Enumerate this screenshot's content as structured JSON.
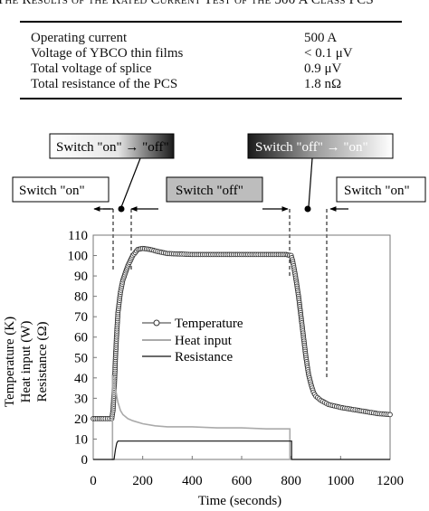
{
  "caption": "The Results of the Rated Current Test of the 500 A Class PCS",
  "spec_table": [
    {
      "label": "Operating current",
      "value": "500 A"
    },
    {
      "label": "Voltage of YBCO thin films",
      "value": "< 0.1 μV"
    },
    {
      "label": "Total voltage of splice",
      "value": "0.9 μV"
    },
    {
      "label": "Total resistance of the PCS",
      "value": "1.8 nΩ"
    }
  ],
  "annotations": {
    "switch_on_left": "Switch \"on\"",
    "switch_on_off": "Switch \"on\" → \"off\"",
    "switch_off": "Switch \"off\"",
    "switch_off_on": "Switch \"off\" → \"on\"",
    "switch_on_right": "Switch \"on\""
  },
  "chart_data": {
    "type": "line",
    "xlabel": "Time (seconds)",
    "ylabel_lines": [
      "Temperature (K)",
      "Heat input (W)",
      "Resistance (Ω)"
    ],
    "xlim": [
      0,
      1200
    ],
    "ylim": [
      0,
      110
    ],
    "xticks": [
      0,
      200,
      400,
      600,
      800,
      1000,
      1200
    ],
    "yticks": [
      0,
      10,
      20,
      30,
      40,
      50,
      60,
      70,
      80,
      90,
      100,
      110
    ],
    "grid": false,
    "legend_position": "center-left",
    "series": [
      {
        "name": "Temperature",
        "style": "line-with-circle-markers",
        "color": "#333333",
        "points": [
          [
            0,
            20
          ],
          [
            40,
            20
          ],
          [
            75,
            20
          ],
          [
            80,
            24
          ],
          [
            85,
            35
          ],
          [
            90,
            50
          ],
          [
            95,
            62
          ],
          [
            100,
            72
          ],
          [
            110,
            82
          ],
          [
            120,
            88
          ],
          [
            140,
            95
          ],
          [
            160,
            100
          ],
          [
            180,
            103
          ],
          [
            200,
            103.5
          ],
          [
            230,
            103
          ],
          [
            260,
            102
          ],
          [
            300,
            101
          ],
          [
            400,
            100.5
          ],
          [
            500,
            100.5
          ],
          [
            600,
            100.5
          ],
          [
            700,
            100.5
          ],
          [
            780,
            100.5
          ],
          [
            800,
            100
          ],
          [
            805,
            98
          ],
          [
            810,
            95
          ],
          [
            820,
            88
          ],
          [
            830,
            80
          ],
          [
            840,
            70
          ],
          [
            850,
            60
          ],
          [
            860,
            50
          ],
          [
            870,
            42
          ],
          [
            880,
            37
          ],
          [
            890,
            33
          ],
          [
            900,
            31
          ],
          [
            920,
            29
          ],
          [
            950,
            27
          ],
          [
            1000,
            25.5
          ],
          [
            1050,
            24.5
          ],
          [
            1100,
            23.5
          ],
          [
            1150,
            22.5
          ],
          [
            1200,
            22
          ]
        ]
      },
      {
        "name": "Heat input",
        "style": "line",
        "color": "#aaaaaa",
        "points": [
          [
            75,
            0
          ],
          [
            78,
            0
          ],
          [
            78,
            41
          ],
          [
            85,
            40
          ],
          [
            90,
            35
          ],
          [
            95,
            31
          ],
          [
            100,
            28
          ],
          [
            110,
            24
          ],
          [
            120,
            22
          ],
          [
            140,
            20
          ],
          [
            160,
            19
          ],
          [
            200,
            17.5
          ],
          [
            250,
            16.5
          ],
          [
            300,
            16
          ],
          [
            400,
            16
          ],
          [
            500,
            15.5
          ],
          [
            600,
            15.5
          ],
          [
            700,
            15
          ],
          [
            795,
            15
          ],
          [
            795,
            0
          ],
          [
            800,
            0
          ]
        ]
      },
      {
        "name": "Resistance",
        "style": "line",
        "color": "#111111",
        "points": [
          [
            0,
            0
          ],
          [
            84,
            0
          ],
          [
            84,
            0
          ],
          [
            90,
            5
          ],
          [
            95,
            8
          ],
          [
            100,
            9
          ],
          [
            110,
            9
          ],
          [
            200,
            9
          ],
          [
            400,
            9
          ],
          [
            600,
            9
          ],
          [
            800,
            9
          ],
          [
            802,
            9
          ],
          [
            802,
            0
          ],
          [
            1200,
            0
          ]
        ]
      }
    ]
  }
}
